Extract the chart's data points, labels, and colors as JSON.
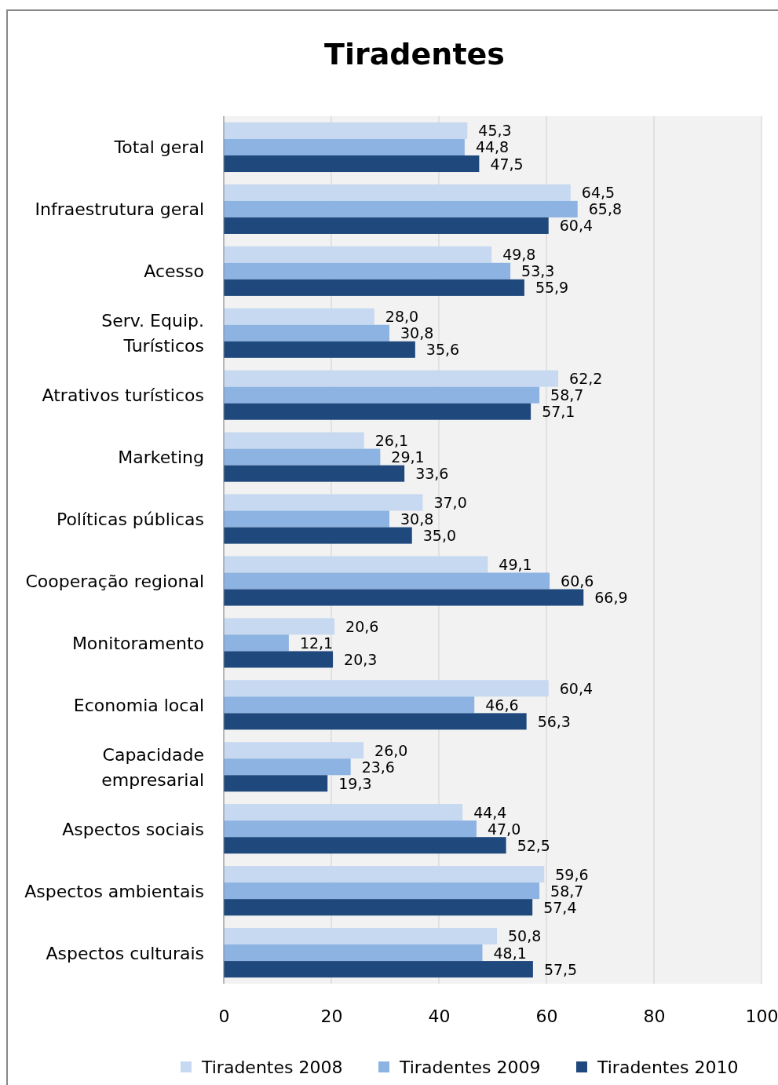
{
  "chart_data": {
    "type": "bar",
    "orientation": "horizontal",
    "title": "Tiradentes",
    "categories": [
      "Total geral",
      "Infraestrutura geral",
      "Acesso",
      "Serv. Equip.\nTurísticos",
      "Atrativos turísticos",
      "Marketing",
      "Políticas públicas",
      "Cooperação regional",
      "Monitoramento",
      "Economia local",
      "Capacidade\nempresarial",
      "Aspectos sociais",
      "Aspectos ambientais",
      "Aspectos culturais"
    ],
    "series": [
      {
        "name": "Tiradentes 2008",
        "color": "#c6d9f1",
        "values": [
          45.3,
          64.5,
          49.8,
          28.0,
          62.2,
          26.1,
          37.0,
          49.1,
          20.6,
          60.4,
          26.0,
          44.4,
          59.6,
          50.8
        ],
        "value_labels": [
          "45,3",
          "64,5",
          "49,8",
          "28,0",
          "62,2",
          "26,1",
          "37,0",
          "49,1",
          "20,6",
          "60,4",
          "26,0",
          "44,4",
          "59,6",
          "50,8"
        ]
      },
      {
        "name": "Tiradentes 2009",
        "color": "#8db3e2",
        "values": [
          44.8,
          65.8,
          53.3,
          30.8,
          58.7,
          29.1,
          30.8,
          60.6,
          12.1,
          46.6,
          23.6,
          47.0,
          58.7,
          48.1
        ],
        "value_labels": [
          "44,8",
          "65,8",
          "53,3",
          "30,8",
          "58,7",
          "29,1",
          "30,8",
          "60,6",
          "12,1",
          "46,6",
          "23,6",
          "47,0",
          "58,7",
          "48,1"
        ]
      },
      {
        "name": "Tiradentes 2010",
        "color": "#1f497d",
        "values": [
          47.5,
          60.4,
          55.9,
          35.6,
          57.1,
          33.6,
          35.0,
          66.9,
          20.3,
          56.3,
          19.3,
          52.5,
          57.4,
          57.5
        ],
        "value_labels": [
          "47,5",
          "60,4",
          "55,9",
          "35,6",
          "57,1",
          "33,6",
          "35,0",
          "66,9",
          "20,3",
          "56,3",
          "19,3",
          "52,5",
          "57,4",
          "57,5"
        ]
      }
    ],
    "xlim": [
      0,
      100
    ],
    "xticks": [
      0,
      20,
      40,
      60,
      80,
      100
    ],
    "grid": "x",
    "legend": "bottom"
  }
}
